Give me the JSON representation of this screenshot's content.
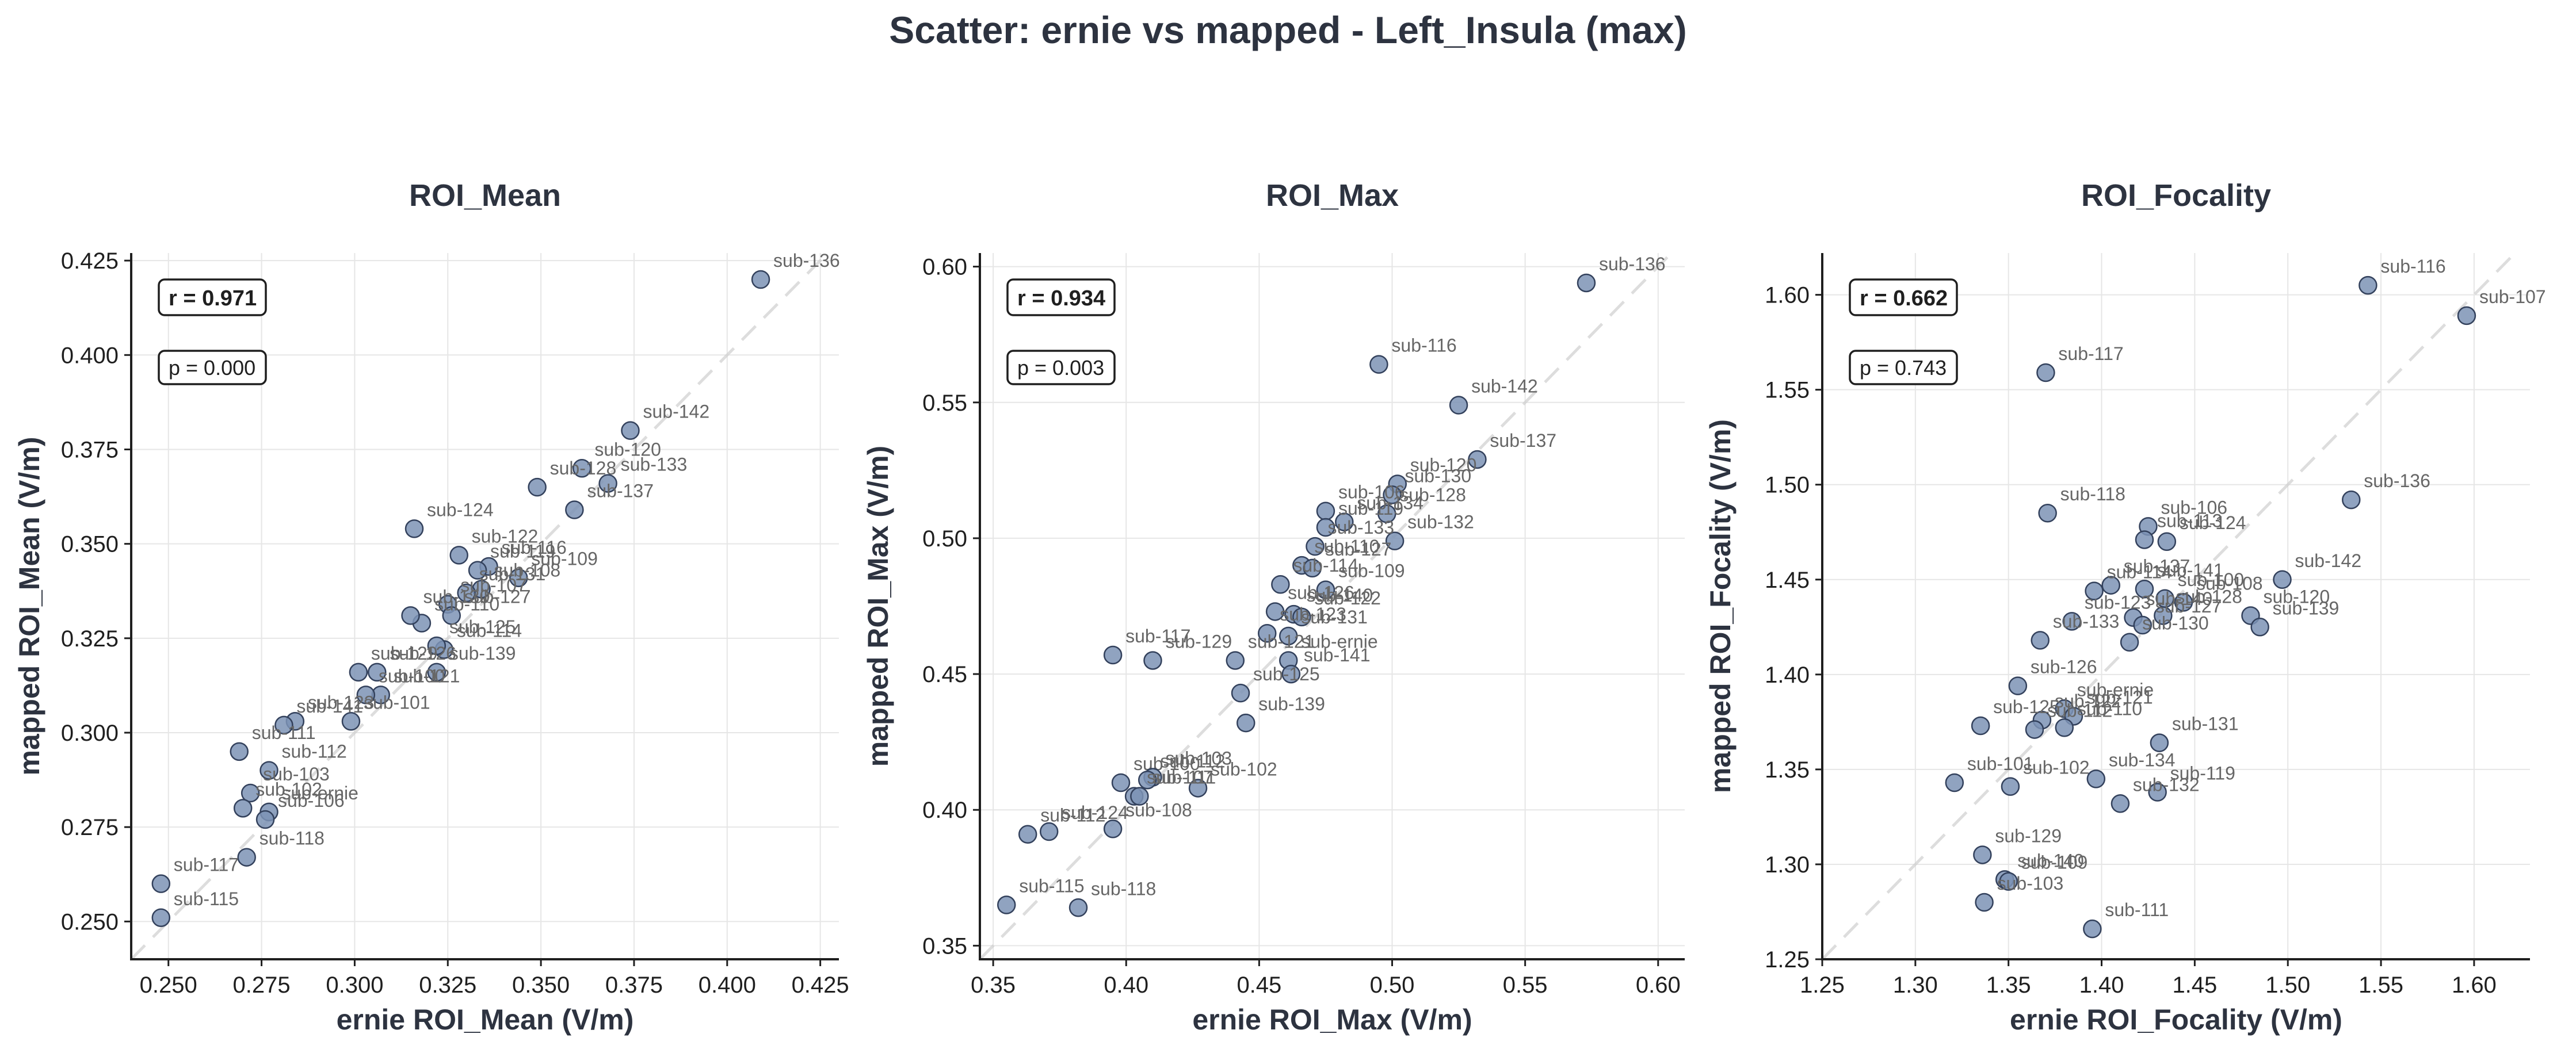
{
  "figure": {
    "title": "Scatter: ernie vs mapped - Left_Insula (max)"
  },
  "chart_data": [
    {
      "type": "scatter",
      "title": "ROI_Mean",
      "xlabel": "ernie ROI_Mean (V/m)",
      "ylabel": "mapped ROI_Mean (V/m)",
      "xlim": [
        0.24,
        0.43
      ],
      "ylim": [
        0.24,
        0.427
      ],
      "xticks": [
        "0.250",
        "0.275",
        "0.300",
        "0.325",
        "0.350",
        "0.375",
        "0.400",
        "0.425"
      ],
      "yticks": [
        "0.250",
        "0.275",
        "0.300",
        "0.325",
        "0.350",
        "0.375",
        "0.400",
        "0.425"
      ],
      "grid": true,
      "identity_line": true,
      "r_text": "r = 0.971",
      "p_text": "p = 0.000",
      "points": [
        {
          "x": 0.409,
          "y": 0.42,
          "label": "sub-136"
        },
        {
          "x": 0.374,
          "y": 0.38,
          "label": "sub-142"
        },
        {
          "x": 0.368,
          "y": 0.366,
          "label": "sub-133"
        },
        {
          "x": 0.361,
          "y": 0.37,
          "label": "sub-120"
        },
        {
          "x": 0.359,
          "y": 0.359,
          "label": "sub-137"
        },
        {
          "x": 0.349,
          "y": 0.365,
          "label": "sub-128"
        },
        {
          "x": 0.316,
          "y": 0.354,
          "label": "sub-124"
        },
        {
          "x": 0.328,
          "y": 0.347,
          "label": "sub-122"
        },
        {
          "x": 0.336,
          "y": 0.344,
          "label": "sub-116"
        },
        {
          "x": 0.333,
          "y": 0.343,
          "label": "sub-119"
        },
        {
          "x": 0.344,
          "y": 0.341,
          "label": "sub-109"
        },
        {
          "x": 0.334,
          "y": 0.338,
          "label": "sub-108"
        },
        {
          "x": 0.33,
          "y": 0.337,
          "label": "sub-131"
        },
        {
          "x": 0.325,
          "y": 0.334,
          "label": "sub-107"
        },
        {
          "x": 0.326,
          "y": 0.331,
          "label": "sub-127"
        },
        {
          "x": 0.318,
          "y": 0.329,
          "label": "sub-110"
        },
        {
          "x": 0.315,
          "y": 0.331,
          "label": "sub-130"
        },
        {
          "x": 0.324,
          "y": 0.322,
          "label": "sub-114"
        },
        {
          "x": 0.322,
          "y": 0.323,
          "label": "sub-125"
        },
        {
          "x": 0.306,
          "y": 0.316,
          "label": "sub-126"
        },
        {
          "x": 0.301,
          "y": 0.316,
          "label": "sub-129"
        },
        {
          "x": 0.322,
          "y": 0.316,
          "label": "sub-139"
        },
        {
          "x": 0.307,
          "y": 0.31,
          "label": "sub-121"
        },
        {
          "x": 0.303,
          "y": 0.31,
          "label": "sub-100"
        },
        {
          "x": 0.284,
          "y": 0.303,
          "label": "sub-123"
        },
        {
          "x": 0.299,
          "y": 0.303,
          "label": "sub-101"
        },
        {
          "x": 0.281,
          "y": 0.302,
          "label": "sub-141"
        },
        {
          "x": 0.269,
          "y": 0.295,
          "label": "sub-111"
        },
        {
          "x": 0.277,
          "y": 0.29,
          "label": "sub-112"
        },
        {
          "x": 0.272,
          "y": 0.284,
          "label": "sub-103"
        },
        {
          "x": 0.277,
          "y": 0.279,
          "label": "sub-ernie"
        },
        {
          "x": 0.27,
          "y": 0.28,
          "label": "sub-102"
        },
        {
          "x": 0.276,
          "y": 0.277,
          "label": "sub-106"
        },
        {
          "x": 0.271,
          "y": 0.267,
          "label": "sub-118"
        },
        {
          "x": 0.248,
          "y": 0.26,
          "label": "sub-117"
        },
        {
          "x": 0.248,
          "y": 0.251,
          "label": "sub-115"
        }
      ]
    },
    {
      "type": "scatter",
      "title": "ROI_Max",
      "xlabel": "ernie ROI_Max (V/m)",
      "ylabel": "mapped ROI_Max (V/m)",
      "xlim": [
        0.345,
        0.61
      ],
      "ylim": [
        0.345,
        0.605
      ],
      "xticks": [
        "0.35",
        "0.40",
        "0.45",
        "0.50",
        "0.55",
        "0.60"
      ],
      "yticks": [
        "0.35",
        "0.40",
        "0.45",
        "0.50",
        "0.55",
        "0.60"
      ],
      "grid": true,
      "identity_line": true,
      "r_text": "r = 0.934",
      "p_text": "p = 0.003",
      "points": [
        {
          "x": 0.573,
          "y": 0.594,
          "label": "sub-136"
        },
        {
          "x": 0.495,
          "y": 0.564,
          "label": "sub-116"
        },
        {
          "x": 0.525,
          "y": 0.549,
          "label": "sub-142"
        },
        {
          "x": 0.532,
          "y": 0.529,
          "label": "sub-137"
        },
        {
          "x": 0.502,
          "y": 0.52,
          "label": "sub-120"
        },
        {
          "x": 0.5,
          "y": 0.516,
          "label": "sub-130"
        },
        {
          "x": 0.475,
          "y": 0.51,
          "label": "sub-106"
        },
        {
          "x": 0.498,
          "y": 0.509,
          "label": "sub-128"
        },
        {
          "x": 0.482,
          "y": 0.506,
          "label": "sub-134"
        },
        {
          "x": 0.475,
          "y": 0.504,
          "label": "sub-119"
        },
        {
          "x": 0.501,
          "y": 0.499,
          "label": "sub-132"
        },
        {
          "x": 0.471,
          "y": 0.497,
          "label": "sub-133"
        },
        {
          "x": 0.466,
          "y": 0.49,
          "label": "sub-110"
        },
        {
          "x": 0.47,
          "y": 0.489,
          "label": "sub-127"
        },
        {
          "x": 0.458,
          "y": 0.483,
          "label": "sub-114"
        },
        {
          "x": 0.475,
          "y": 0.481,
          "label": "sub-109"
        },
        {
          "x": 0.456,
          "y": 0.473,
          "label": "sub-126"
        },
        {
          "x": 0.463,
          "y": 0.472,
          "label": "sub-140"
        },
        {
          "x": 0.466,
          "y": 0.471,
          "label": "sub-122"
        },
        {
          "x": 0.395,
          "y": 0.457,
          "label": "sub-117"
        },
        {
          "x": 0.41,
          "y": 0.455,
          "label": "sub-129"
        },
        {
          "x": 0.453,
          "y": 0.465,
          "label": "sub-123"
        },
        {
          "x": 0.461,
          "y": 0.464,
          "label": "sub-131"
        },
        {
          "x": 0.441,
          "y": 0.455,
          "label": "sub-121"
        },
        {
          "x": 0.461,
          "y": 0.455,
          "label": "sub-ernie"
        },
        {
          "x": 0.462,
          "y": 0.45,
          "label": "sub-141"
        },
        {
          "x": 0.443,
          "y": 0.443,
          "label": "sub-125"
        },
        {
          "x": 0.445,
          "y": 0.432,
          "label": "sub-139"
        },
        {
          "x": 0.398,
          "y": 0.41,
          "label": "sub-100"
        },
        {
          "x": 0.41,
          "y": 0.412,
          "label": "sub-103"
        },
        {
          "x": 0.408,
          "y": 0.411,
          "label": "sub-112"
        },
        {
          "x": 0.427,
          "y": 0.408,
          "label": "sub-102"
        },
        {
          "x": 0.403,
          "y": 0.405,
          "label": "sub-107"
        },
        {
          "x": 0.405,
          "y": 0.405,
          "label": "sub-111"
        },
        {
          "x": 0.371,
          "y": 0.392,
          "label": "sub-124"
        },
        {
          "x": 0.363,
          "y": 0.391,
          "label": "sub-112"
        },
        {
          "x": 0.395,
          "y": 0.393,
          "label": "sub-108"
        },
        {
          "x": 0.355,
          "y": 0.365,
          "label": "sub-115"
        },
        {
          "x": 0.382,
          "y": 0.364,
          "label": "sub-118"
        }
      ]
    },
    {
      "type": "scatter",
      "title": "ROI_Focality",
      "xlabel": "ernie ROI_Focality (V/m)",
      "ylabel": "mapped ROI_Focality (V/m)",
      "xlim": [
        1.25,
        1.63
      ],
      "ylim": [
        1.25,
        1.622
      ],
      "xticks": [
        "1.25",
        "1.30",
        "1.35",
        "1.40",
        "1.45",
        "1.50",
        "1.55",
        "1.60"
      ],
      "yticks": [
        "1.25",
        "1.30",
        "1.35",
        "1.40",
        "1.45",
        "1.50",
        "1.55",
        "1.60"
      ],
      "grid": true,
      "identity_line": true,
      "r_text": "r = 0.662",
      "p_text": "p = 0.743",
      "points": [
        {
          "x": 1.543,
          "y": 1.605,
          "label": "sub-116"
        },
        {
          "x": 1.596,
          "y": 1.589,
          "label": "sub-107"
        },
        {
          "x": 1.37,
          "y": 1.559,
          "label": "sub-117"
        },
        {
          "x": 1.534,
          "y": 1.492,
          "label": "sub-136"
        },
        {
          "x": 1.371,
          "y": 1.485,
          "label": "sub-118"
        },
        {
          "x": 1.425,
          "y": 1.478,
          "label": "sub-106"
        },
        {
          "x": 1.423,
          "y": 1.471,
          "label": "sub-113"
        },
        {
          "x": 1.435,
          "y": 1.47,
          "label": "sub-124"
        },
        {
          "x": 1.497,
          "y": 1.45,
          "label": "sub-142"
        },
        {
          "x": 1.405,
          "y": 1.447,
          "label": "sub-137"
        },
        {
          "x": 1.423,
          "y": 1.445,
          "label": "sub-141"
        },
        {
          "x": 1.396,
          "y": 1.444,
          "label": "sub-114"
        },
        {
          "x": 1.434,
          "y": 1.44,
          "label": "sub-100"
        },
        {
          "x": 1.444,
          "y": 1.438,
          "label": "sub-108"
        },
        {
          "x": 1.48,
          "y": 1.431,
          "label": "sub-120"
        },
        {
          "x": 1.433,
          "y": 1.431,
          "label": "sub-128"
        },
        {
          "x": 1.485,
          "y": 1.425,
          "label": "sub-139"
        },
        {
          "x": 1.417,
          "y": 1.43,
          "label": "sub-140"
        },
        {
          "x": 1.384,
          "y": 1.428,
          "label": "sub-123"
        },
        {
          "x": 1.422,
          "y": 1.426,
          "label": "sub-127"
        },
        {
          "x": 1.415,
          "y": 1.417,
          "label": "sub-130"
        },
        {
          "x": 1.367,
          "y": 1.418,
          "label": "sub-133"
        },
        {
          "x": 1.355,
          "y": 1.394,
          "label": "sub-126"
        },
        {
          "x": 1.38,
          "y": 1.382,
          "label": "sub-ernie"
        },
        {
          "x": 1.385,
          "y": 1.378,
          "label": "sub-121"
        },
        {
          "x": 1.368,
          "y": 1.376,
          "label": "sub-122"
        },
        {
          "x": 1.364,
          "y": 1.371,
          "label": "sub-112"
        },
        {
          "x": 1.335,
          "y": 1.373,
          "label": "sub-125"
        },
        {
          "x": 1.431,
          "y": 1.364,
          "label": "sub-131"
        },
        {
          "x": 1.38,
          "y": 1.372,
          "label": "sub-110"
        },
        {
          "x": 1.321,
          "y": 1.343,
          "label": "sub-101"
        },
        {
          "x": 1.351,
          "y": 1.341,
          "label": "sub-102"
        },
        {
          "x": 1.397,
          "y": 1.345,
          "label": "sub-134"
        },
        {
          "x": 1.43,
          "y": 1.338,
          "label": "sub-119"
        },
        {
          "x": 1.41,
          "y": 1.332,
          "label": "sub-132"
        },
        {
          "x": 1.336,
          "y": 1.305,
          "label": "sub-129"
        },
        {
          "x": 1.348,
          "y": 1.292,
          "label": "sub-140"
        },
        {
          "x": 1.35,
          "y": 1.291,
          "label": "sub-109"
        },
        {
          "x": 1.337,
          "y": 1.28,
          "label": "sub-103"
        },
        {
          "x": 1.395,
          "y": 1.266,
          "label": "sub-111"
        }
      ]
    }
  ]
}
